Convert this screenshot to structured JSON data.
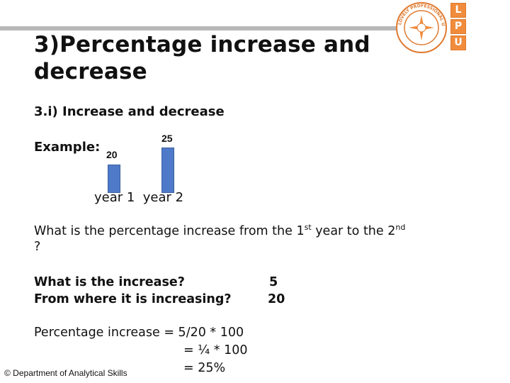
{
  "slide": {
    "title_line1": "3)Percentage increase and",
    "title_line2": "decrease",
    "subtitle": "3.i) Increase and decrease",
    "example_label": "Example:",
    "bar_label_1": "20",
    "bar_label_2": "25",
    "year_labels": "year 1  year 2",
    "question_part1": "What is the percentage increase from the 1",
    "question_sup1": "st",
    "question_part2": " year to the 2",
    "question_sup2": "nd",
    "question_part3": " ?",
    "increase_question": "What is the increase?",
    "increase_value": "5",
    "from_question": "From where it is increasing?",
    "from_value": "20",
    "calc_line1": "Percentage increase = 5/20 * 100",
    "calc_line2": "= ¼ * 100",
    "calc_line3": "= 25%",
    "footer": "© Department of Analytical Skills"
  },
  "chart_data": {
    "type": "bar",
    "categories": [
      "year 1",
      "year 2"
    ],
    "values": [
      20,
      25
    ]
  },
  "logo": {
    "letters": [
      "L",
      "P",
      "U"
    ],
    "seal_text": "LOVELY PROFESSIONAL UNIVERSITY",
    "seal_subtext": "PUNJAB (INDIA)",
    "brand_color": "#f08c3c"
  }
}
